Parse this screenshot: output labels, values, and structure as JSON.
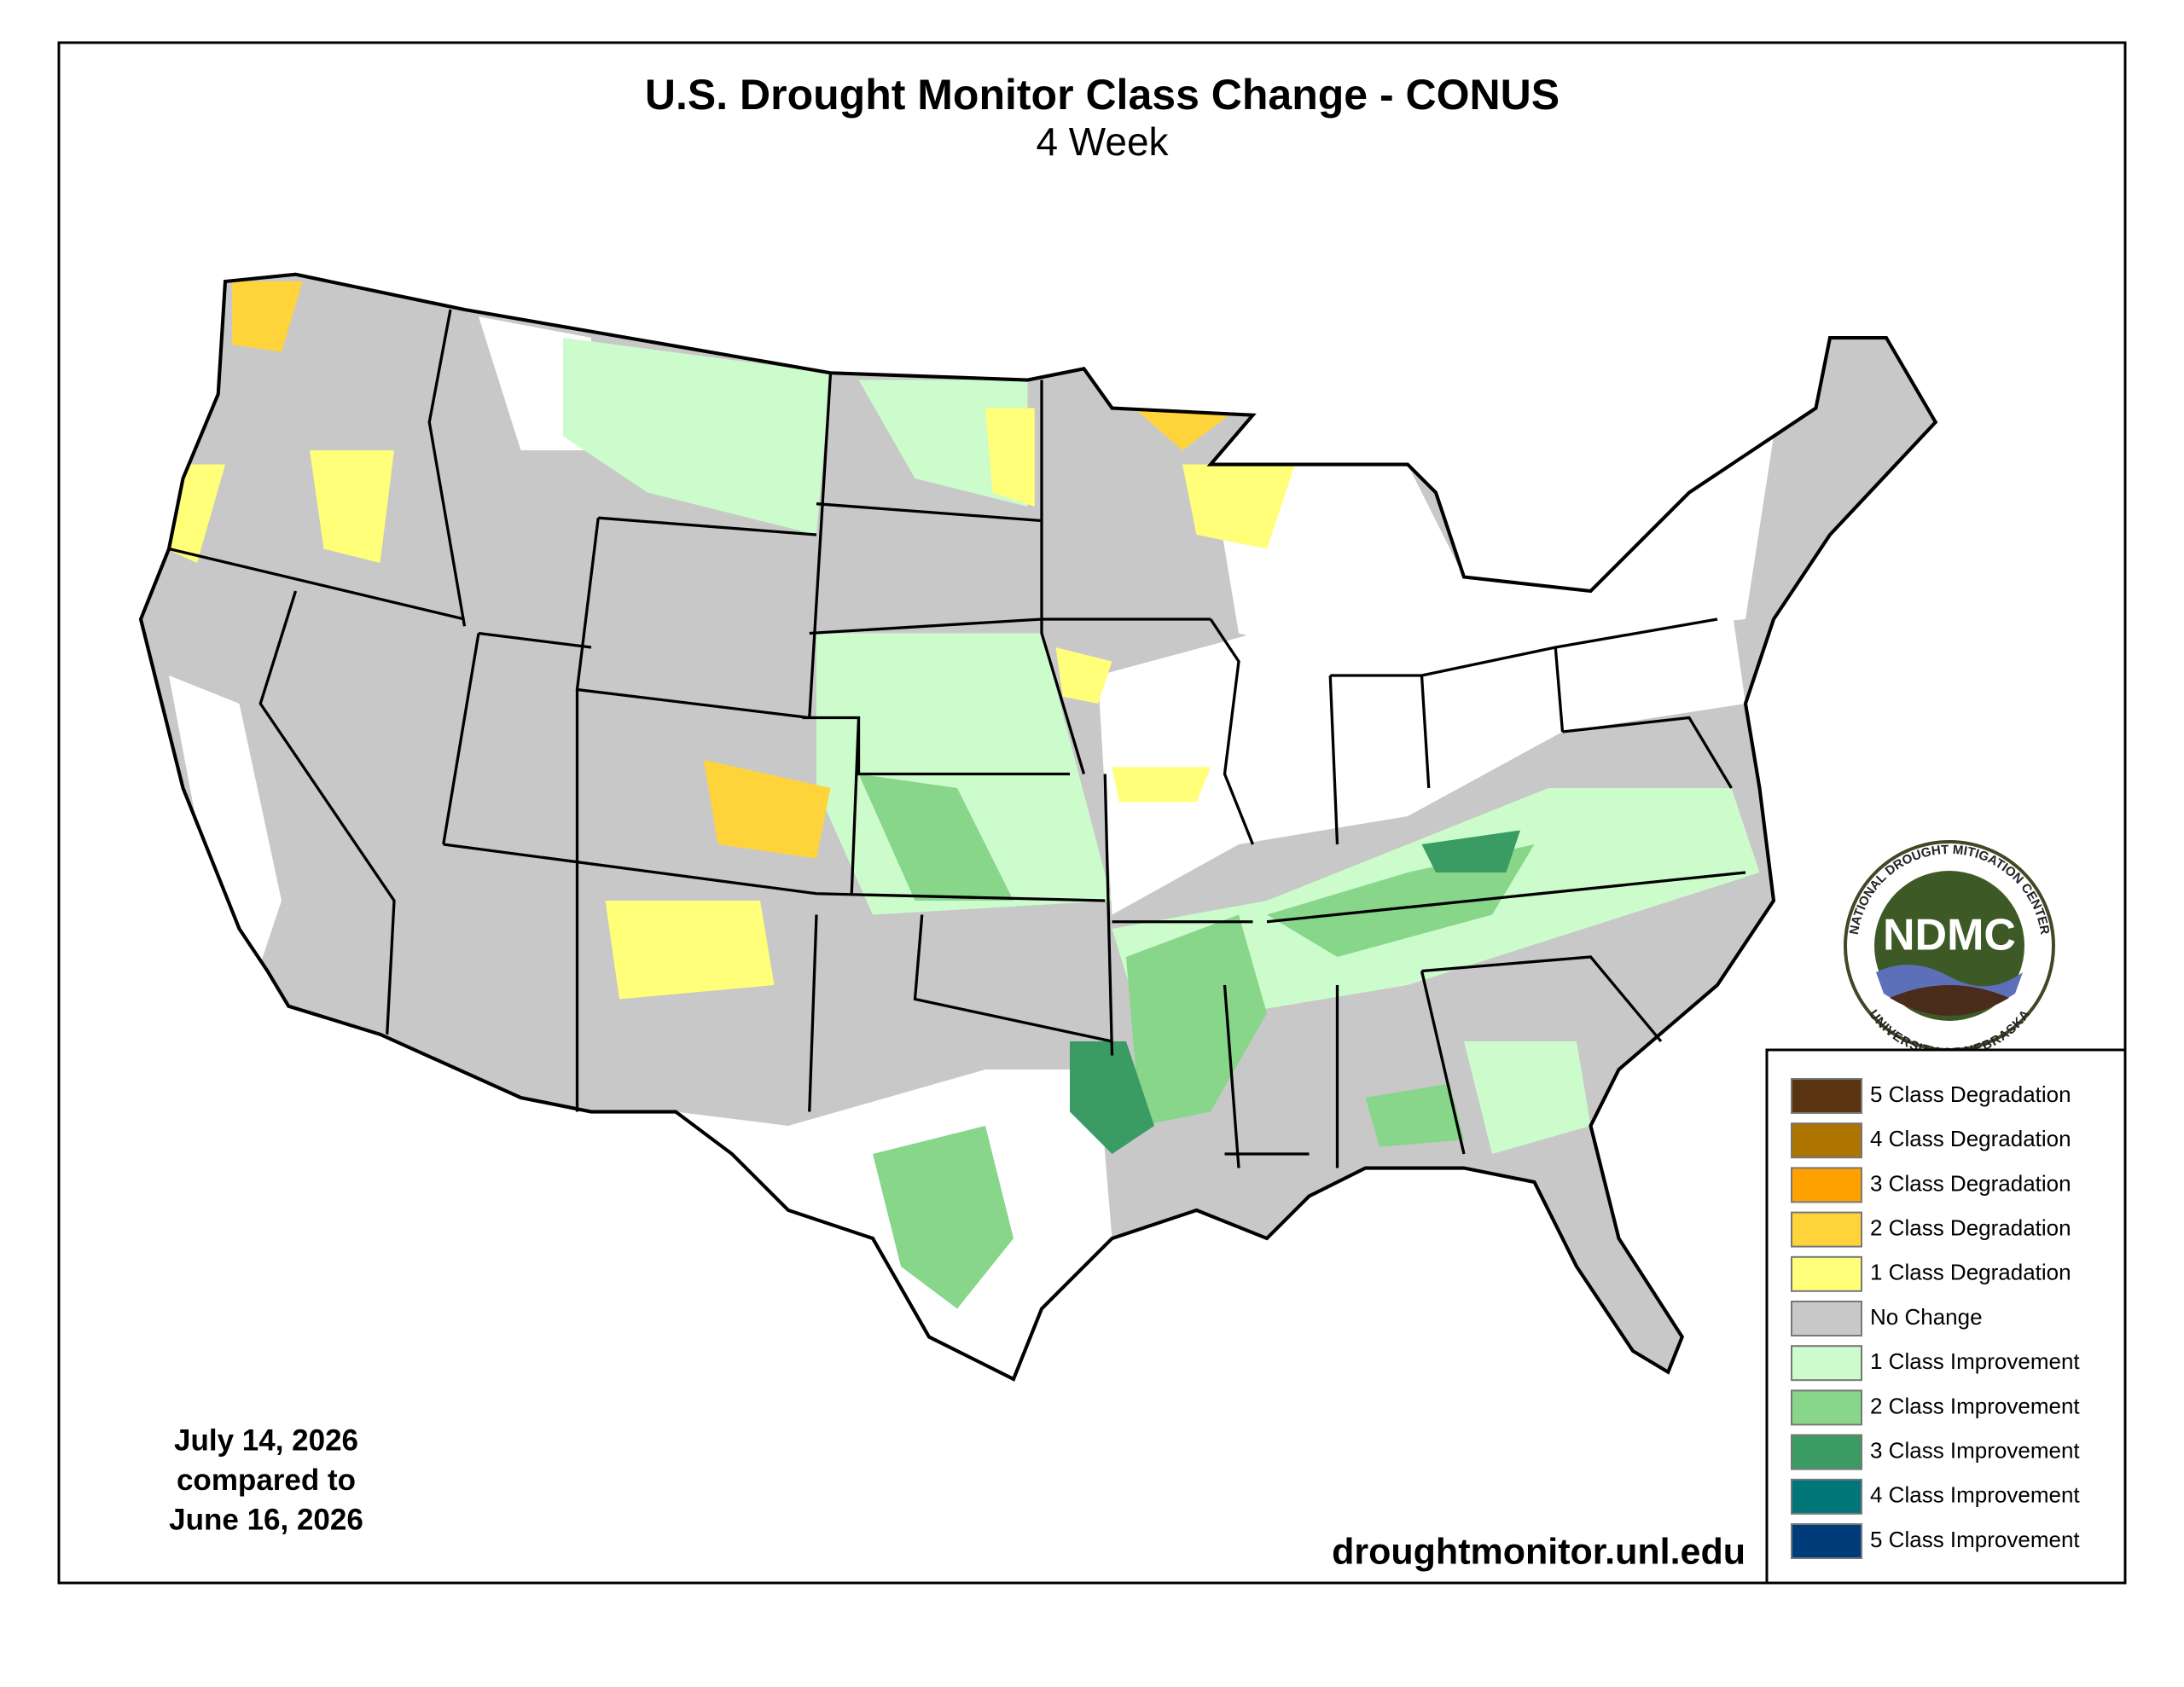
{
  "header": {
    "title": "U.S. Drought Monitor Class Change - CONUS",
    "subtitle": "4 Week"
  },
  "legend": {
    "items": [
      {
        "label": "5 Class Degradation",
        "color": "#5a3410"
      },
      {
        "label": "4 Class Degradation",
        "color": "#ad7400"
      },
      {
        "label": "3 Class Degradation",
        "color": "#ffa200"
      },
      {
        "label": "2 Class Degradation",
        "color": "#ffd43b"
      },
      {
        "label": "1 Class Degradation",
        "color": "#ffff7a"
      },
      {
        "label": "No Change",
        "color": "#c8c8c8"
      },
      {
        "label": "1 Class Improvement",
        "color": "#ccfccc"
      },
      {
        "label": "2 Class Improvement",
        "color": "#88d68a"
      },
      {
        "label": "3 Class Improvement",
        "color": "#3a9b63"
      },
      {
        "label": "4 Class Improvement",
        "color": "#007678"
      },
      {
        "label": "5 Class Improvement",
        "color": "#003c7a"
      }
    ]
  },
  "date_note": {
    "lines": [
      "July 14, 2026",
      "compared to",
      "June 16, 2026"
    ]
  },
  "source": "droughtmonitor.unl.edu",
  "logo": {
    "abbreviation": "NDMC",
    "top_text": "NATIONAL DROUGHT MITIGATION CENTER",
    "bottom_text": "UNIVERSITY OF NEBRASKA"
  }
}
